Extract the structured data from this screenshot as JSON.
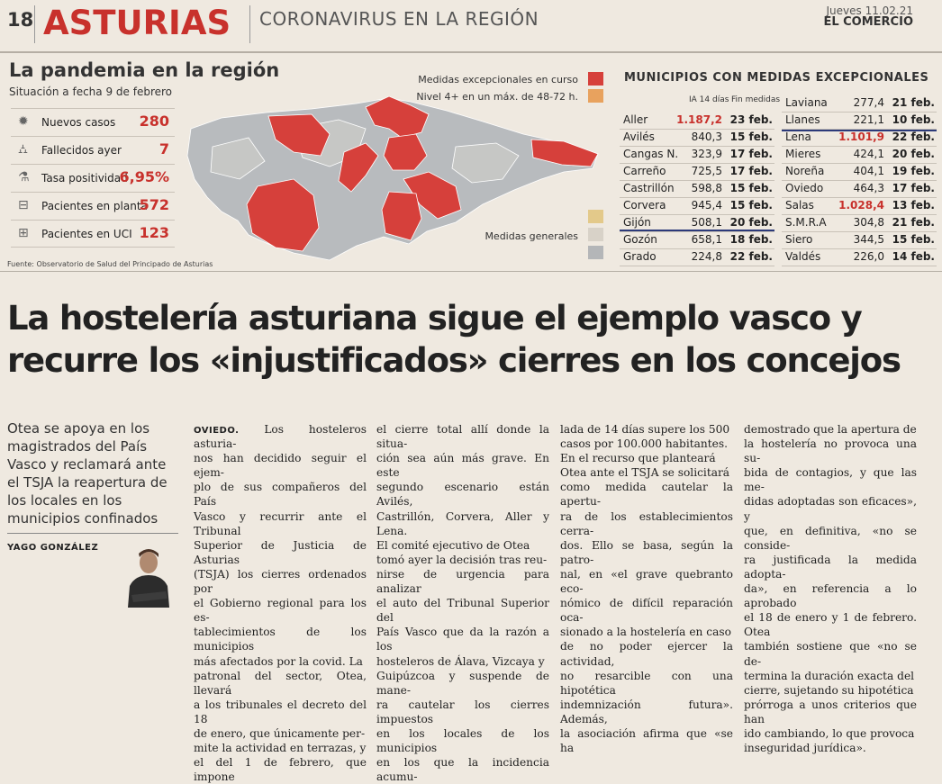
{
  "header": {
    "page_number": "18",
    "section": "ASTURIAS",
    "subsection": "CORONAVIRUS EN LA REGIÓN",
    "date": "Jueves 11.02.21",
    "newspaper": "EL COMERCIO"
  },
  "pandemic": {
    "title": "La pandemia en la región",
    "subtitle": "Situación a fecha 9 de febrero",
    "stats": [
      {
        "icon": "virus-icon",
        "label": "Nuevos casos",
        "value": "280"
      },
      {
        "icon": "tombstone-icon",
        "label": "Fallecidos ayer",
        "value": "7"
      },
      {
        "icon": "test-tube-icon",
        "label": "Tasa positividad",
        "value": "6,95%"
      },
      {
        "icon": "hospital-bed-icon",
        "label": "Pacientes en planta",
        "value": "572"
      },
      {
        "icon": "icu-bed-icon",
        "label": "Pacientes en UCI",
        "value": "123"
      }
    ],
    "source": "Fuente: Observatorio de Salud del Principado de Asturias",
    "legend": {
      "exceptional": "Medidas excepcionales en curso",
      "level4": "Nivel 4+ en un máx. de 48-72 h.",
      "general": "Medidas generales"
    },
    "colors": {
      "exceptional": "#d6403b",
      "level4": "#e8a25e",
      "general_a": "#e3c98a",
      "general_b": "#d8d2c8",
      "general_c": "#b4b6b8",
      "accent": "#c8312c"
    }
  },
  "municipalities": {
    "title": "MUNICIPIOS CON MEDIDAS EXCEPCIONALES",
    "col_ia": "IA 14 días",
    "col_fin": "Fin medidas",
    "left": [
      {
        "name": "Aller",
        "ia": "1.187,2",
        "fin": "23 feb.",
        "highlight": true
      },
      {
        "name": "Avilés",
        "ia": "840,3",
        "fin": "15 feb.",
        "highlight": false
      },
      {
        "name": "Cangas N.",
        "ia": "323,9",
        "fin": "17 feb.",
        "highlight": false
      },
      {
        "name": "Carreño",
        "ia": "725,5",
        "fin": "17 feb.",
        "highlight": false
      },
      {
        "name": "Castrillón",
        "ia": "598,8",
        "fin": "15 feb.",
        "highlight": false
      },
      {
        "name": "Corvera",
        "ia": "945,4",
        "fin": "15 feb.",
        "highlight": false
      },
      {
        "name": "Gijón",
        "ia": "508,1",
        "fin": "20 feb.",
        "highlight": false
      },
      {
        "name": "Gozón",
        "ia": "658,1",
        "fin": "18 feb.",
        "highlight": false
      },
      {
        "name": "Grado",
        "ia": "224,8",
        "fin": "22 feb.",
        "highlight": false
      }
    ],
    "right": [
      {
        "name": "Laviana",
        "ia": "277,4",
        "fin": "21 feb.",
        "highlight": false
      },
      {
        "name": "Llanes",
        "ia": "221,1",
        "fin": "10 feb.",
        "highlight": false
      },
      {
        "name": "Lena",
        "ia": "1.101,9",
        "fin": "22 feb.",
        "highlight": true
      },
      {
        "name": "Mieres",
        "ia": "424,1",
        "fin": "20 feb.",
        "highlight": false
      },
      {
        "name": "Noreña",
        "ia": "404,1",
        "fin": "19 feb.",
        "highlight": false
      },
      {
        "name": "Oviedo",
        "ia": "464,3",
        "fin": "17 feb.",
        "highlight": false
      },
      {
        "name": "Salas",
        "ia": "1.028,4",
        "fin": "13 feb.",
        "highlight": true
      },
      {
        "name": "S.M.R.A",
        "ia": "304,8",
        "fin": "21 feb.",
        "highlight": false
      },
      {
        "name": "Siero",
        "ia": "344,5",
        "fin": "15 feb.",
        "highlight": false
      },
      {
        "name": "Valdés",
        "ia": "226,0",
        "fin": "14 feb.",
        "highlight": false
      }
    ]
  },
  "article": {
    "headline_1": "La hostelería asturiana sigue el ejemplo vasco y",
    "headline_2": "recurre los «injustificados» cierres en los concejos",
    "dek": "Otea se apoya en los magistrados del País Vasco y reclamará ante el TSJA la reapertura de los locales en los municipios confinados",
    "byline": "YAGO GONZÁLEZ",
    "dateline": "OVIEDO.",
    "col1": " Los hosteleros asturia-\nnos han decidido seguir el ejem-\nplo de sus compañeros del País\nVasco y recurrir ante el Tribunal\nSuperior de Justicia de Asturias\n(TSJA) los cierres ordenados por\nel Gobierno regional para los es-\ntablecimientos de los municipios\nmás afectados por la covid. La\npatronal del sector, Otea, llevará\na los tribunales el decreto del 18\nde enero, que únicamente per-\nmite la actividad en terrazas, y\nel del 1 de febrero, que impone",
    "col2": "el cierre total allí donde la situa-\nción sea aún más grave. En este\nsegundo escenario están Avilés,\nCastrillón, Corvera, Aller y Lena.\n   El comité ejecutivo de Otea\ntomó ayer la decisión tras reu-\nnirse de urgencia para analizar\nel auto del Tribunal Superior del\nPaís Vasco que da la razón a los\nhosteleros de Álava, Vizcaya y\nGuipúzcoa y suspende de mane-\nra cautelar los cierres impuestos\nen los locales de los municipios\nen los que la incidencia acumu-",
    "col3": "lada de 14 días supere los 500\ncasos por 100.000 habitantes.\n   En el recurso que planteará\nOtea ante el TSJA se solicitará\ncomo medida cautelar la apertu-\nra de los establecimientos cerra-\ndos. Ello se basa, según la patro-\nnal, en «el grave quebranto eco-\nnómico de difícil reparación oca-\nsionado a la hostelería en caso\nde no poder ejercer la actividad,\nno resarcible con una hipotética\nindemnización futura». Además,\nla asociación afirma que «se ha",
    "col4": "demostrado que la apertura de\nla hostelería no provoca una su-\nbida de contagios, y que las me-\ndidas adoptadas son eficaces», y\nque, en definitiva, «no se conside-\nra justificada la medida adopta-\nda», en referencia a lo aprobado\nel 18 de enero y 1 de febrero. Otea\ntambién sostiene que «no se de-\ntermina la duración exacta del\ncierre, sujetando su hipotética\nprórroga a unos criterios que han\nido cambiando, lo que provoca\ninseguridad jurídica»."
  }
}
